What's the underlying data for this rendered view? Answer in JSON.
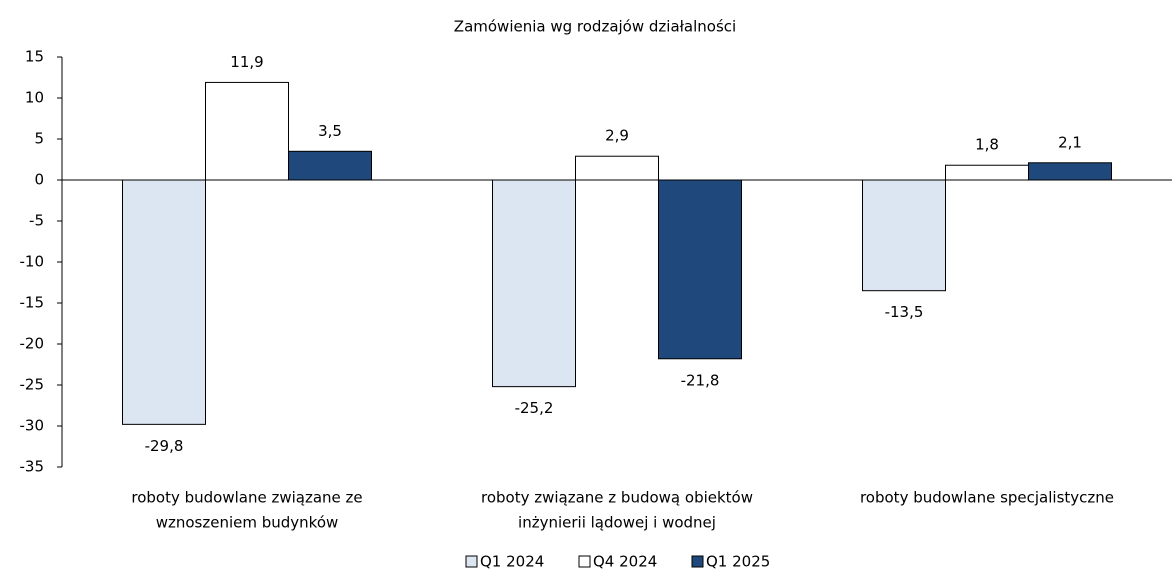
{
  "chart_data": {
    "type": "bar",
    "title": "Zamówienia wg rodzajów działalności",
    "categories": [
      [
        "roboty budowlane związane ze",
        "wznoszeniem budynków"
      ],
      [
        "roboty związane z budową obiektów",
        "inżynierii lądowej i wodnej"
      ],
      [
        "roboty budowlane specjalistyczne"
      ]
    ],
    "series": [
      {
        "name": "Q1 2024",
        "color": "#dce6f2",
        "values": [
          -29.8,
          -25.2,
          -13.5
        ],
        "value_labels": [
          "-29,8",
          "-25,2",
          "-13,5"
        ]
      },
      {
        "name": "Q4 2024",
        "color": "#ffffff",
        "values": [
          11.9,
          2.9,
          1.8
        ],
        "value_labels": [
          "11,9",
          "2,9",
          "1,8"
        ]
      },
      {
        "name": "Q1 2025",
        "color": "#1f497d",
        "values": [
          3.5,
          -21.8,
          2.1
        ],
        "value_labels": [
          "3,5",
          "-21,8",
          "2,1"
        ]
      }
    ],
    "ylim": [
      -35,
      15
    ],
    "yticks": [
      15,
      10,
      5,
      0,
      -5,
      -10,
      -15,
      -20,
      -25,
      -30,
      -35
    ],
    "legend": "bottom"
  }
}
